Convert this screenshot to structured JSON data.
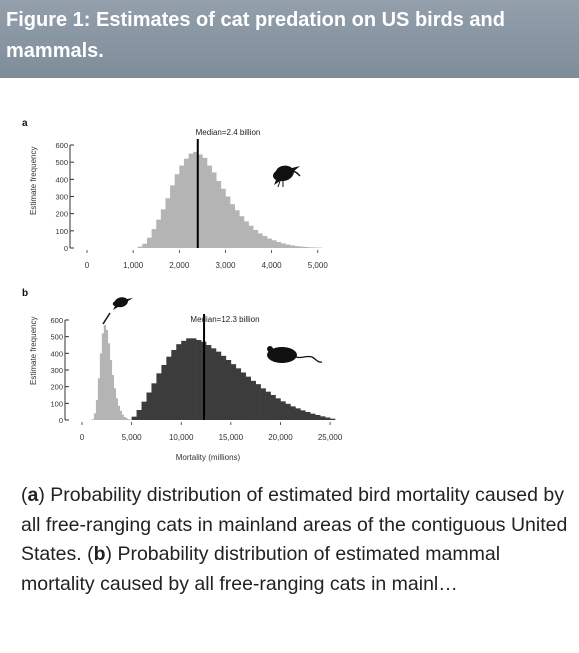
{
  "header": {
    "title": "Figure 1: Estimates of cat predation on US birds and mammals."
  },
  "chart_data": [
    {
      "type": "bar",
      "panel_label": "a",
      "xlabel": "",
      "ylabel": "Estimate frequency",
      "xlim": [
        0,
        5200
      ],
      "ylim": [
        0,
        600
      ],
      "xticks": [
        "0",
        "1,000",
        "2,000",
        "3,000",
        "4,000",
        "5,000"
      ],
      "yticks": [
        "0",
        "100",
        "200",
        "300",
        "400",
        "500",
        "600"
      ],
      "median_label": "Median=2.4 billion",
      "median_value": 2400,
      "bin_width": 100,
      "series": [
        {
          "color": "#b4b4b4",
          "x": [
            1100,
            1200,
            1300,
            1400,
            1500,
            1600,
            1700,
            1800,
            1900,
            2000,
            2100,
            2200,
            2300,
            2400,
            2500,
            2600,
            2700,
            2800,
            2900,
            3000,
            3100,
            3200,
            3300,
            3400,
            3500,
            3600,
            3700,
            3800,
            3900,
            4000,
            4100,
            4200,
            4300,
            4400,
            4500,
            4600,
            4700,
            4800,
            4900,
            5000
          ],
          "values": [
            8,
            25,
            60,
            110,
            165,
            225,
            290,
            365,
            430,
            480,
            520,
            550,
            560,
            545,
            525,
            480,
            440,
            390,
            345,
            300,
            255,
            220,
            185,
            155,
            130,
            105,
            85,
            70,
            55,
            45,
            35,
            27,
            20,
            15,
            11,
            8,
            6,
            4,
            3,
            2
          ]
        }
      ]
    },
    {
      "type": "bar",
      "panel_label": "b",
      "xlabel": "Mortality (millions)",
      "ylabel": "Estimate frequency",
      "xlim": [
        0,
        26000
      ],
      "ylim": [
        0,
        600
      ],
      "xticks": [
        "0",
        "5,000",
        "10,000",
        "15,000",
        "20,000",
        "25,000"
      ],
      "yticks": [
        "0",
        "100",
        "200",
        "300",
        "400",
        "500",
        "600"
      ],
      "median_label": "Median=12.3 billion",
      "median_value": 12300,
      "series": [
        {
          "color": "#b4b4b4",
          "x": [
            1000,
            1200,
            1400,
            1600,
            1800,
            2000,
            2200,
            2400,
            2600,
            2800,
            3000,
            3200,
            3400,
            3600,
            3800,
            4000,
            4200,
            4400,
            4600,
            4800,
            5000
          ],
          "values": [
            5,
            40,
            120,
            250,
            400,
            520,
            570,
            540,
            460,
            360,
            270,
            190,
            130,
            85,
            55,
            32,
            18,
            10,
            5,
            2,
            1
          ]
        },
        {
          "color": "#3c3c3c",
          "x": [
            5000,
            5500,
            6000,
            6500,
            7000,
            7500,
            8000,
            8500,
            9000,
            9500,
            10000,
            10500,
            11000,
            11500,
            12000,
            12500,
            13000,
            13500,
            14000,
            14500,
            15000,
            15500,
            16000,
            16500,
            17000,
            17500,
            18000,
            18500,
            19000,
            19500,
            20000,
            20500,
            21000,
            21500,
            22000,
            22500,
            23000,
            23500,
            24000,
            24500,
            25000
          ],
          "values": [
            20,
            60,
            110,
            165,
            220,
            280,
            330,
            380,
            420,
            455,
            475,
            490,
            490,
            480,
            470,
            450,
            430,
            410,
            385,
            360,
            335,
            310,
            285,
            260,
            235,
            215,
            190,
            170,
            150,
            130,
            112,
            97,
            82,
            70,
            58,
            48,
            38,
            30,
            22,
            15,
            8
          ]
        }
      ]
    }
  ],
  "caption": {
    "a_marker": "a",
    "a_text": ") Probability distribution of estimated bird mortality caused by all free-ranging cats in mainland areas of the contiguous United States. (",
    "b_marker": "b",
    "b_text": ") Probability distribution of estimated mammal mortality caused by all free-ranging cats in mainl…"
  },
  "icons": {
    "panel_a": "bird-icon",
    "panel_b": [
      "bird-icon",
      "mouse-icon"
    ]
  }
}
